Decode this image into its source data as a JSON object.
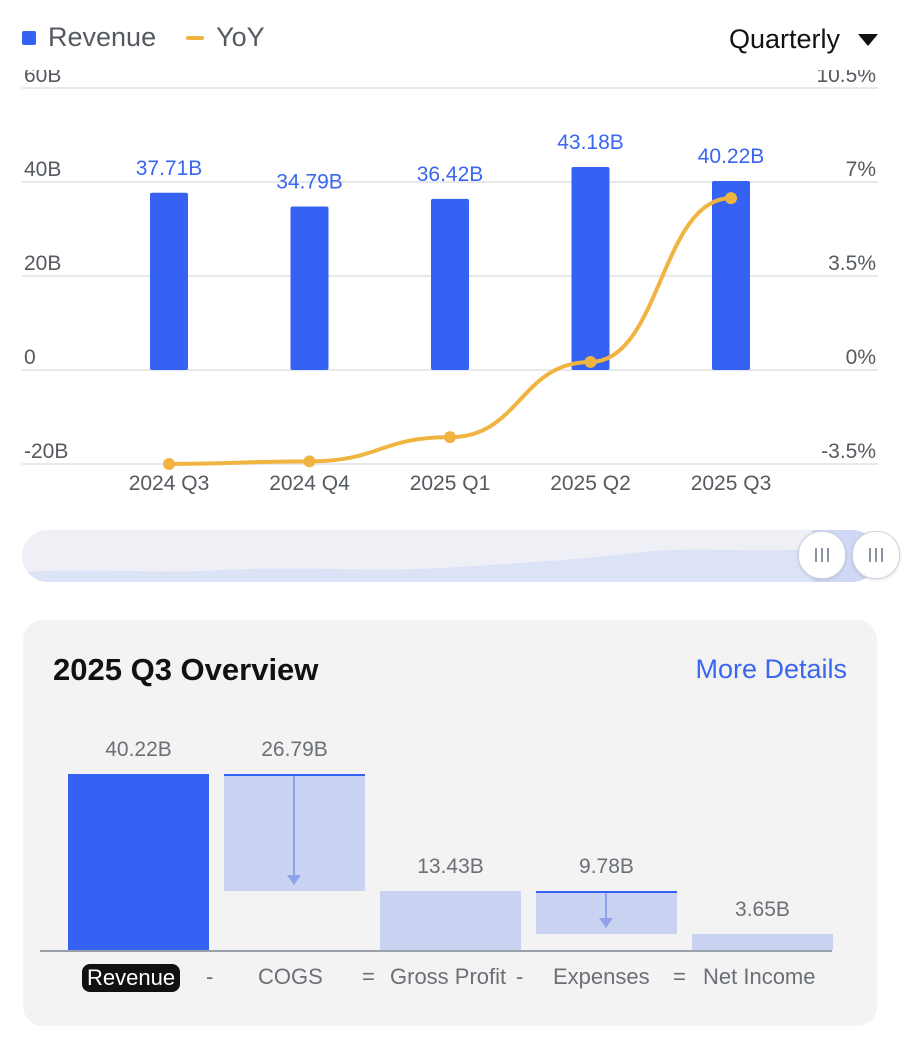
{
  "legend": {
    "revenue": "Revenue",
    "yoy": "YoY"
  },
  "period_selector": {
    "value": "Quarterly"
  },
  "colors": {
    "bar": "#3562f3",
    "line": "#f0b440",
    "value_label": "#3a66f0",
    "waterfall_light": "#c9d3f1"
  },
  "chart_data": {
    "type": "bar",
    "categories": [
      "2024 Q3",
      "2024 Q4",
      "2025 Q1",
      "2025 Q2",
      "2025 Q3"
    ],
    "series": [
      {
        "name": "Revenue",
        "type": "bar",
        "values": [
          37.71,
          34.79,
          36.42,
          43.18,
          40.22
        ],
        "labels": [
          "37.71B",
          "34.79B",
          "36.42B",
          "43.18B",
          "40.22B"
        ]
      },
      {
        "name": "YoY",
        "type": "line",
        "axis": "right",
        "values": [
          -3.5,
          -3.4,
          -2.5,
          0.3,
          6.4
        ]
      }
    ],
    "y_left": {
      "range": [
        -20,
        60
      ],
      "ticks": [
        60,
        40,
        20,
        0,
        -20
      ],
      "tick_labels": [
        "60B",
        "40B",
        "20B",
        "0",
        "-20B"
      ]
    },
    "y_right": {
      "range": [
        -3.5,
        10.5
      ],
      "tick_labels": [
        "10.5%",
        "7%",
        "3.5%",
        "0%",
        "-3.5%"
      ]
    },
    "grid": true,
    "legend_position": "top-left"
  },
  "range_slider": {
    "start": 0.93,
    "end": 1.0
  },
  "overview": {
    "title": "2025 Q3 Overview",
    "more_link": "More Details",
    "items": [
      {
        "label": "Revenue",
        "value": "40.22B",
        "amount": 40.22,
        "kind": "total"
      },
      {
        "label": "COGS",
        "value": "26.79B",
        "amount": 26.79,
        "kind": "decrease"
      },
      {
        "label": "Gross Profit",
        "value": "13.43B",
        "amount": 13.43,
        "kind": "subtotal"
      },
      {
        "label": "Expenses",
        "value": "9.78B",
        "amount": 9.78,
        "kind": "decrease"
      },
      {
        "label": "Net Income",
        "value": "3.65B",
        "amount": 3.65,
        "kind": "subtotal"
      }
    ],
    "operators": [
      "-",
      "=",
      "-",
      "="
    ]
  }
}
